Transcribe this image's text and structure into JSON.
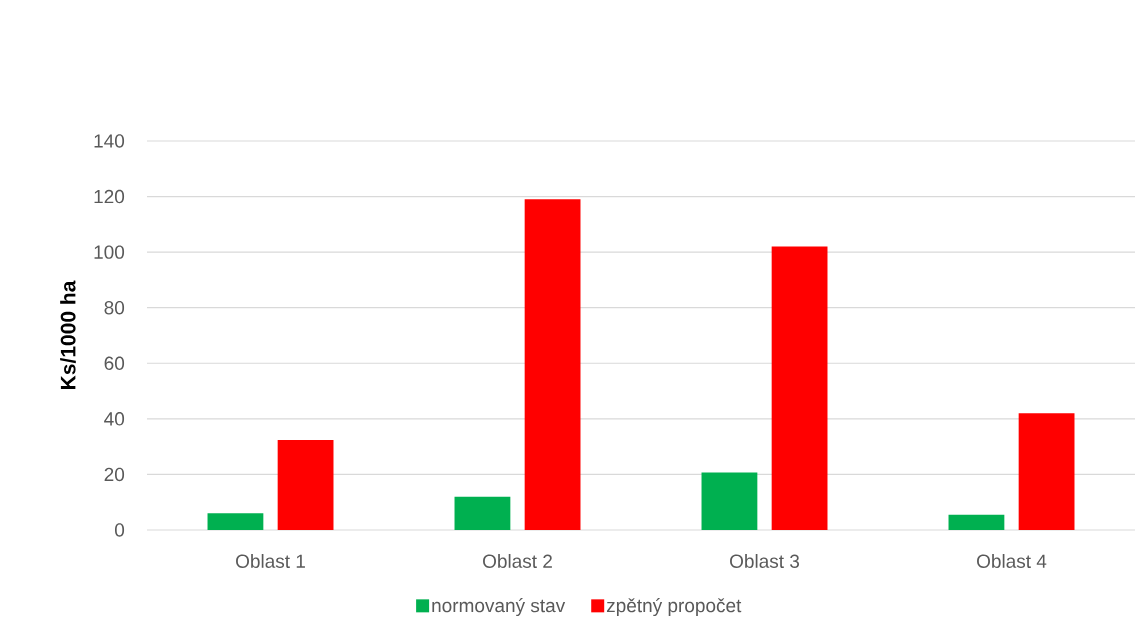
{
  "chart_data": {
    "type": "bar",
    "ylabel": "Ks/1000 ha",
    "categories": [
      "Oblast 1",
      "Oblast 2",
      "Oblast 3",
      "Oblast 4"
    ],
    "series": [
      {
        "name": "normovaný stav",
        "color": "#00b050",
        "values": [
          6,
          12,
          20.7,
          5.5
        ]
      },
      {
        "name": "zpětný propočet",
        "color": "#ff0000",
        "values": [
          32.4,
          119,
          102,
          42
        ]
      }
    ],
    "ylim": [
      0,
      140
    ],
    "yticks": [
      0,
      20,
      40,
      60,
      80,
      100,
      120,
      140
    ],
    "grid": "y",
    "legend": "bottom"
  }
}
